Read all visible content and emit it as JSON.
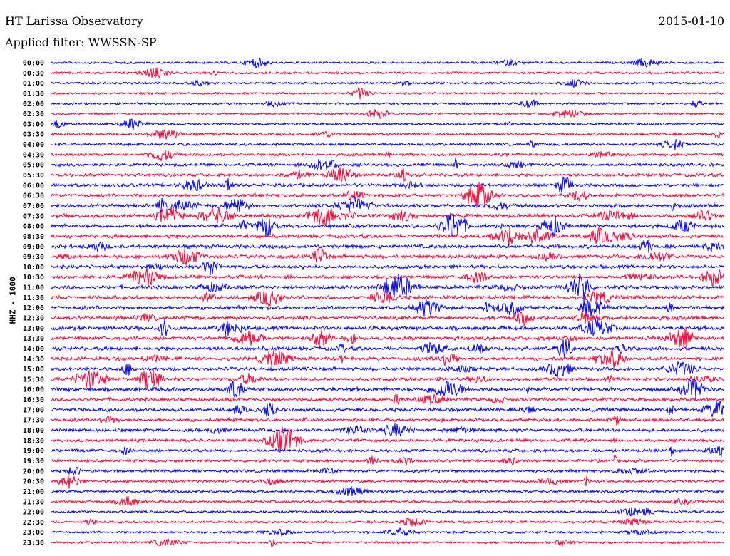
{
  "header": {
    "station": "HT Larissa Observatory",
    "date": "2015-01-10",
    "filter": "Applied filter: WWSSN-SP"
  },
  "chart_data": {
    "type": "line",
    "title": "HT Larissa Observatory",
    "ylabel": "HHZ - 1000",
    "colors": [
      "#0000ff",
      "#ff0033"
    ],
    "row_labels": [
      "00:00",
      "00:30",
      "01:00",
      "01:30",
      "02:00",
      "02:30",
      "03:00",
      "03:30",
      "04:00",
      "04:30",
      "05:00",
      "05:30",
      "06:00",
      "06:30",
      "07:00",
      "07:30",
      "08:00",
      "08:30",
      "09:00",
      "09:30",
      "10:00",
      "10:30",
      "11:00",
      "11:30",
      "12:00",
      "12:30",
      "13:00",
      "13:30",
      "14:00",
      "14:30",
      "15:00",
      "15:30",
      "16:00",
      "16:30",
      "17:00",
      "17:30",
      "18:00",
      "18:30",
      "19:00",
      "19:30",
      "20:00",
      "20:30",
      "21:00",
      "21:30",
      "22:00",
      "22:30",
      "23:00",
      "23:30"
    ],
    "relative_noise_level": [
      0.3,
      0.35,
      0.3,
      0.25,
      0.3,
      0.35,
      0.4,
      0.5,
      0.55,
      0.6,
      0.7,
      0.8,
      0.8,
      0.85,
      0.9,
      1.0,
      1.0,
      1.0,
      1.0,
      1.0,
      0.9,
      0.9,
      1.0,
      1.0,
      1.0,
      1.0,
      1.0,
      1.0,
      1.0,
      0.9,
      0.9,
      0.9,
      1.0,
      0.9,
      0.9,
      0.8,
      0.8,
      0.7,
      0.7,
      0.6,
      0.6,
      0.55,
      0.5,
      0.5,
      0.45,
      0.4,
      0.4,
      0.35
    ]
  }
}
